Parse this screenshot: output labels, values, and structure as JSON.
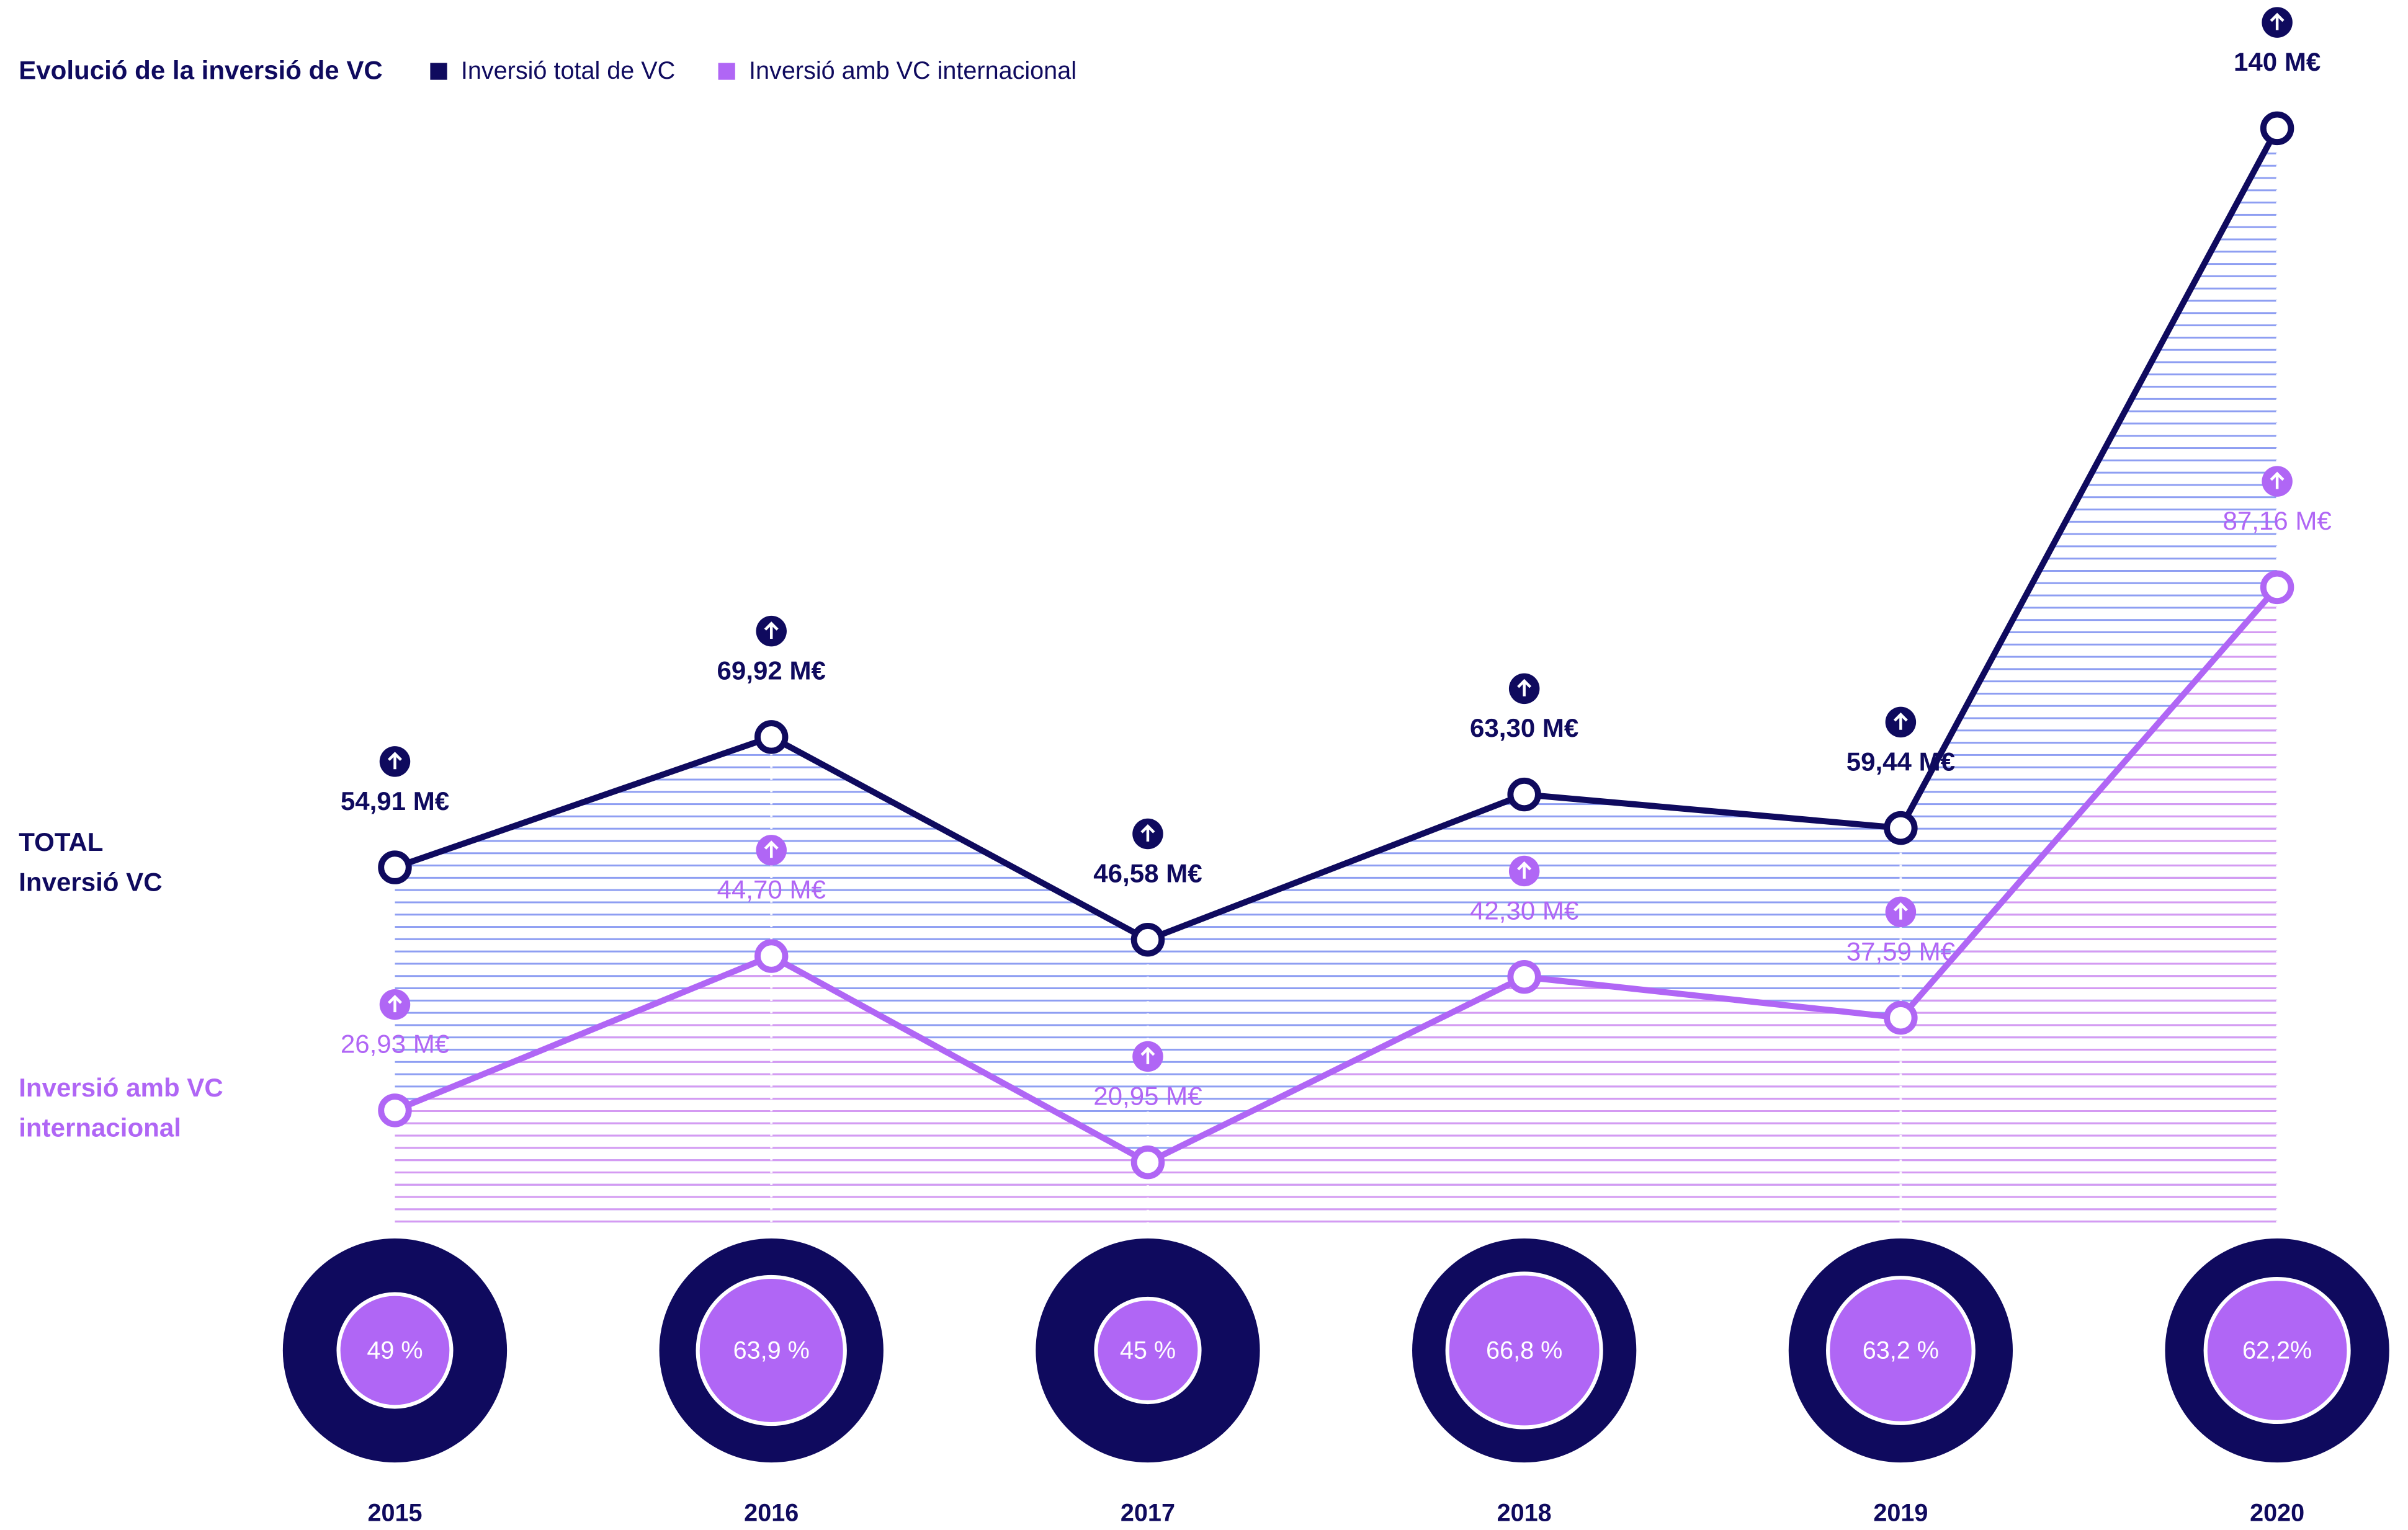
{
  "chart_data": {
    "type": "line",
    "title": "Evolució de la inversió de VC",
    "categories": [
      "2015",
      "2016",
      "2017",
      "2018",
      "2019",
      "2020"
    ],
    "series": [
      {
        "name": "Inversió total de VC",
        "color": "#0f0a5e",
        "values": [
          54.91,
          69.92,
          46.58,
          63.3,
          59.44,
          140
        ],
        "value_labels": [
          "54,91 M€",
          "69,92 M€",
          "46,58 M€",
          "63,30 M€",
          "59,44 M€",
          "140 M€"
        ]
      },
      {
        "name": "Inversió amb VC internacional",
        "color": "#b066f5",
        "values": [
          26.93,
          44.7,
          20.95,
          42.3,
          37.59,
          87.16
        ],
        "value_labels": [
          "26,93 M€",
          "44,70 M€",
          "20,95 M€",
          "42,30 M€",
          "37,59 M€",
          "87,16 M€"
        ]
      }
    ],
    "annotations": [
      [
        "TOTAL",
        "Inversió VC"
      ],
      [
        "Inversió amb VC",
        "internacional"
      ]
    ],
    "international_share": {
      "values": [
        49,
        63.9,
        45,
        66.8,
        63.2,
        62.2
      ],
      "value_labels": [
        "49 %",
        "63,9 %",
        "45 %",
        "66,8 %",
        "63,2 %",
        "62,2%"
      ]
    }
  }
}
